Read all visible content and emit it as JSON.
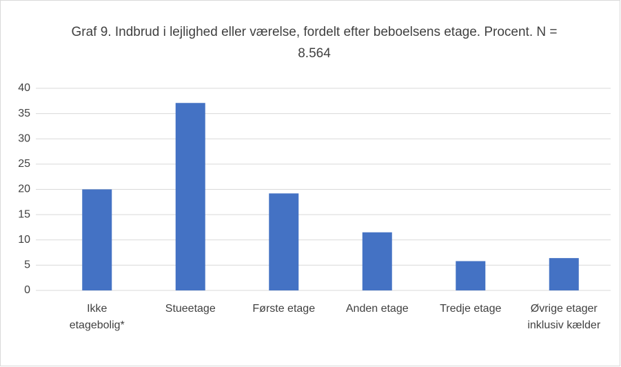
{
  "chart_data": {
    "type": "bar",
    "title": "Graf 9. Indbrud i lejlighed eller værelse, fordelt efter beboelsens etage. Procent. N = 8.564",
    "categories": [
      "Ikke etagebolig*",
      "Stueetage",
      "Første etage",
      "Anden etage",
      "Tredje etage",
      "Øvrige etager inklusiv kælder"
    ],
    "values": [
      20.0,
      37.1,
      19.2,
      11.5,
      5.8,
      6.4
    ],
    "color": "#4472c4",
    "ylim": [
      0,
      40
    ],
    "yticks": [
      0,
      5,
      10,
      15,
      20,
      25,
      30,
      35,
      40
    ],
    "grid": true
  }
}
